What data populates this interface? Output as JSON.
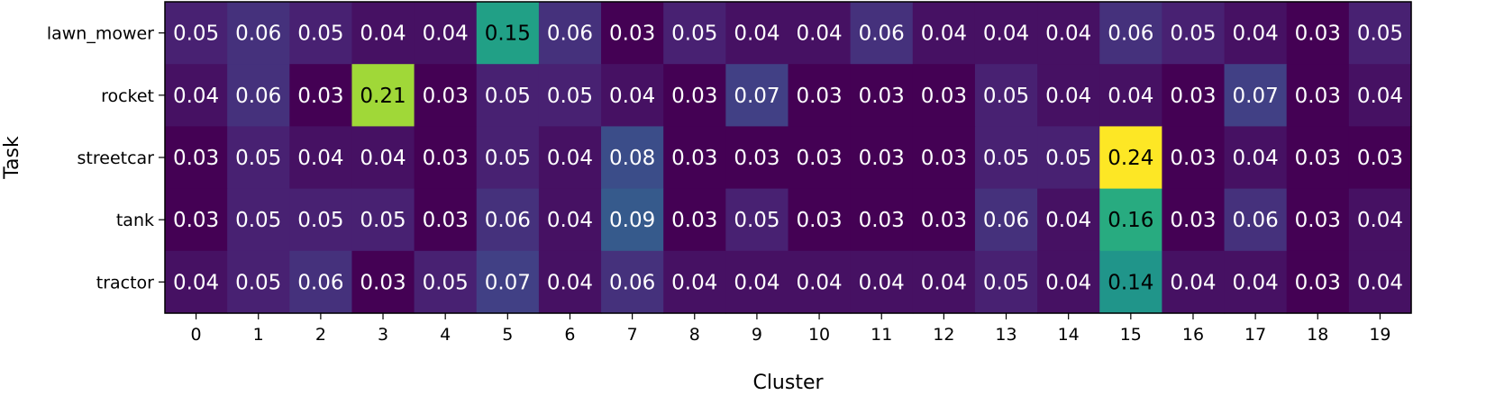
{
  "chart_data": {
    "type": "heatmap",
    "title": "",
    "xlabel": "Cluster",
    "ylabel": "Task",
    "rows": [
      "lawn_mower",
      "rocket",
      "streetcar",
      "tank",
      "tractor"
    ],
    "columns": [
      "0",
      "1",
      "2",
      "3",
      "4",
      "5",
      "6",
      "7",
      "8",
      "9",
      "10",
      "11",
      "12",
      "13",
      "14",
      "15",
      "16",
      "17",
      "18",
      "19"
    ],
    "values": [
      [
        0.05,
        0.06,
        0.05,
        0.04,
        0.04,
        0.15,
        0.06,
        0.03,
        0.05,
        0.04,
        0.04,
        0.06,
        0.04,
        0.04,
        0.04,
        0.06,
        0.05,
        0.04,
        0.03,
        0.05
      ],
      [
        0.04,
        0.06,
        0.03,
        0.21,
        0.03,
        0.05,
        0.05,
        0.04,
        0.03,
        0.07,
        0.03,
        0.03,
        0.03,
        0.05,
        0.04,
        0.04,
        0.03,
        0.07,
        0.03,
        0.04
      ],
      [
        0.03,
        0.05,
        0.04,
        0.04,
        0.03,
        0.05,
        0.04,
        0.08,
        0.03,
        0.03,
        0.03,
        0.03,
        0.03,
        0.05,
        0.05,
        0.24,
        0.03,
        0.04,
        0.03,
        0.03
      ],
      [
        0.03,
        0.05,
        0.05,
        0.05,
        0.03,
        0.06,
        0.04,
        0.09,
        0.03,
        0.05,
        0.03,
        0.03,
        0.03,
        0.06,
        0.04,
        0.16,
        0.03,
        0.06,
        0.03,
        0.04
      ],
      [
        0.04,
        0.05,
        0.06,
        0.03,
        0.05,
        0.07,
        0.04,
        0.06,
        0.04,
        0.04,
        0.04,
        0.04,
        0.04,
        0.05,
        0.04,
        0.14,
        0.04,
        0.04,
        0.03,
        0.04
      ]
    ],
    "colormap": "viridis",
    "vmin": 0.03,
    "vmax": 0.24,
    "annotations": true
  }
}
